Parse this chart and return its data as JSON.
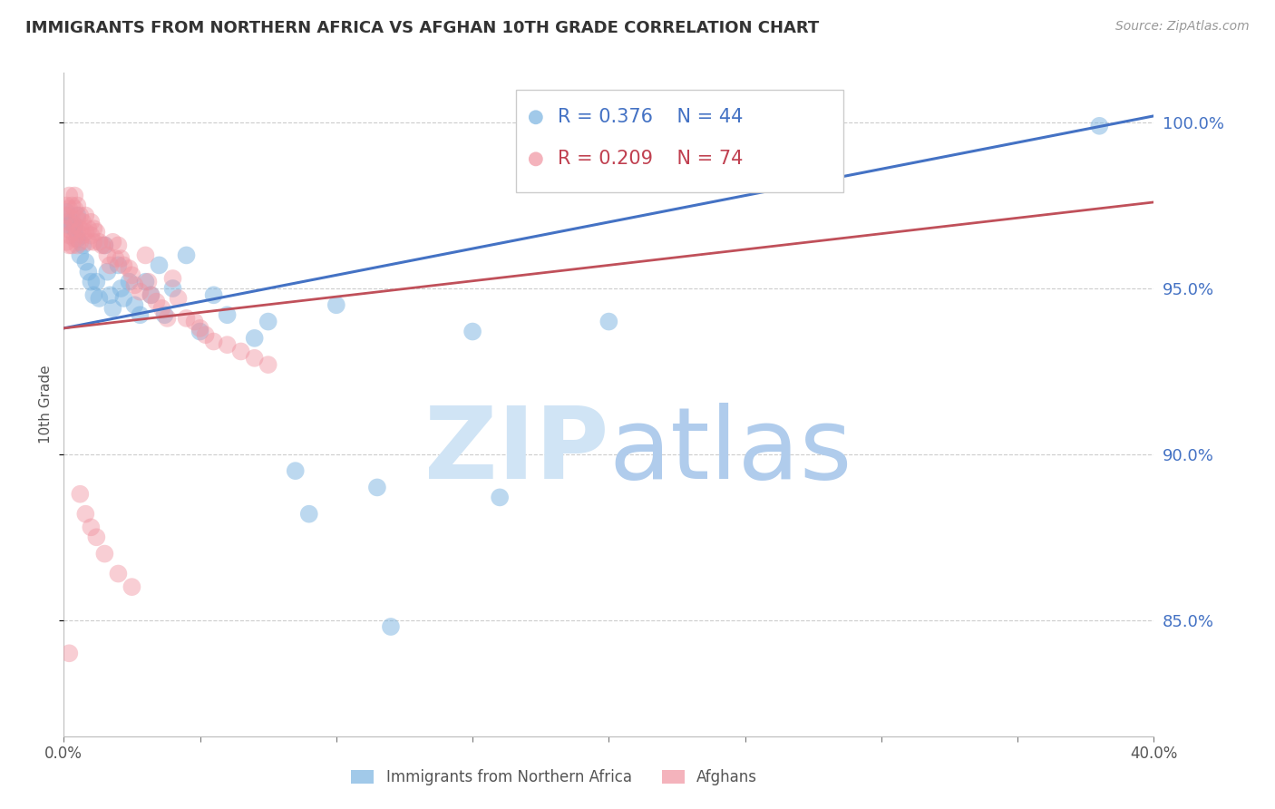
{
  "title": "IMMIGRANTS FROM NORTHERN AFRICA VS AFGHAN 10TH GRADE CORRELATION CHART",
  "source": "Source: ZipAtlas.com",
  "ylabel": "10th Grade",
  "xlim": [
    0.0,
    0.4
  ],
  "ylim": [
    0.815,
    1.015
  ],
  "yticks": [
    0.85,
    0.9,
    0.95,
    1.0
  ],
  "ytick_labels": [
    "85.0%",
    "90.0%",
    "95.0%",
    "100.0%"
  ],
  "legend_r1": "R = 0.376",
  "legend_n1": "N = 44",
  "legend_r2": "R = 0.209",
  "legend_n2": "N = 74",
  "blue_color": "#7AB3E0",
  "pink_color": "#F093A0",
  "blue_line_color": "#4472C4",
  "pink_line_color": "#C0505A",
  "blue_line": [
    [
      0.0,
      0.938
    ],
    [
      0.4,
      1.002
    ]
  ],
  "pink_line": [
    [
      0.0,
      0.938
    ],
    [
      0.4,
      0.976
    ]
  ],
  "blue_scatter": [
    [
      0.001,
      0.973
    ],
    [
      0.002,
      0.969
    ],
    [
      0.003,
      0.97
    ],
    [
      0.004,
      0.968
    ],
    [
      0.005,
      0.972
    ],
    [
      0.005,
      0.965
    ],
    [
      0.006,
      0.96
    ],
    [
      0.007,
      0.963
    ],
    [
      0.008,
      0.958
    ],
    [
      0.009,
      0.955
    ],
    [
      0.01,
      0.952
    ],
    [
      0.011,
      0.948
    ],
    [
      0.012,
      0.952
    ],
    [
      0.013,
      0.947
    ],
    [
      0.015,
      0.963
    ],
    [
      0.016,
      0.955
    ],
    [
      0.017,
      0.948
    ],
    [
      0.018,
      0.944
    ],
    [
      0.02,
      0.957
    ],
    [
      0.021,
      0.95
    ],
    [
      0.022,
      0.947
    ],
    [
      0.024,
      0.952
    ],
    [
      0.026,
      0.945
    ],
    [
      0.028,
      0.942
    ],
    [
      0.03,
      0.952
    ],
    [
      0.032,
      0.948
    ],
    [
      0.035,
      0.957
    ],
    [
      0.037,
      0.942
    ],
    [
      0.04,
      0.95
    ],
    [
      0.045,
      0.96
    ],
    [
      0.05,
      0.937
    ],
    [
      0.055,
      0.948
    ],
    [
      0.06,
      0.942
    ],
    [
      0.07,
      0.935
    ],
    [
      0.075,
      0.94
    ],
    [
      0.085,
      0.895
    ],
    [
      0.09,
      0.882
    ],
    [
      0.1,
      0.945
    ],
    [
      0.115,
      0.89
    ],
    [
      0.12,
      0.848
    ],
    [
      0.15,
      0.937
    ],
    [
      0.16,
      0.887
    ],
    [
      0.2,
      0.94
    ],
    [
      0.38,
      0.999
    ]
  ],
  "pink_scatter": [
    [
      0.001,
      0.975
    ],
    [
      0.001,
      0.972
    ],
    [
      0.001,
      0.968
    ],
    [
      0.001,
      0.964
    ],
    [
      0.002,
      0.978
    ],
    [
      0.002,
      0.974
    ],
    [
      0.002,
      0.97
    ],
    [
      0.002,
      0.966
    ],
    [
      0.002,
      0.963
    ],
    [
      0.003,
      0.975
    ],
    [
      0.003,
      0.971
    ],
    [
      0.003,
      0.967
    ],
    [
      0.003,
      0.963
    ],
    [
      0.004,
      0.978
    ],
    [
      0.004,
      0.974
    ],
    [
      0.004,
      0.969
    ],
    [
      0.004,
      0.965
    ],
    [
      0.005,
      0.975
    ],
    [
      0.005,
      0.971
    ],
    [
      0.005,
      0.967
    ],
    [
      0.005,
      0.963
    ],
    [
      0.006,
      0.972
    ],
    [
      0.006,
      0.968
    ],
    [
      0.006,
      0.964
    ],
    [
      0.007,
      0.97
    ],
    [
      0.007,
      0.966
    ],
    [
      0.008,
      0.972
    ],
    [
      0.008,
      0.967
    ],
    [
      0.009,
      0.968
    ],
    [
      0.009,
      0.964
    ],
    [
      0.01,
      0.97
    ],
    [
      0.01,
      0.966
    ],
    [
      0.011,
      0.968
    ],
    [
      0.011,
      0.964
    ],
    [
      0.012,
      0.967
    ],
    [
      0.013,
      0.964
    ],
    [
      0.014,
      0.963
    ],
    [
      0.015,
      0.963
    ],
    [
      0.016,
      0.96
    ],
    [
      0.017,
      0.957
    ],
    [
      0.018,
      0.964
    ],
    [
      0.019,
      0.959
    ],
    [
      0.02,
      0.963
    ],
    [
      0.021,
      0.959
    ],
    [
      0.022,
      0.957
    ],
    [
      0.024,
      0.956
    ],
    [
      0.025,
      0.954
    ],
    [
      0.026,
      0.951
    ],
    [
      0.028,
      0.949
    ],
    [
      0.03,
      0.96
    ],
    [
      0.031,
      0.952
    ],
    [
      0.032,
      0.948
    ],
    [
      0.034,
      0.946
    ],
    [
      0.036,
      0.944
    ],
    [
      0.038,
      0.941
    ],
    [
      0.04,
      0.953
    ],
    [
      0.042,
      0.947
    ],
    [
      0.045,
      0.941
    ],
    [
      0.048,
      0.94
    ],
    [
      0.05,
      0.938
    ],
    [
      0.052,
      0.936
    ],
    [
      0.055,
      0.934
    ],
    [
      0.06,
      0.933
    ],
    [
      0.065,
      0.931
    ],
    [
      0.07,
      0.929
    ],
    [
      0.075,
      0.927
    ],
    [
      0.006,
      0.888
    ],
    [
      0.008,
      0.882
    ],
    [
      0.01,
      0.878
    ],
    [
      0.012,
      0.875
    ],
    [
      0.015,
      0.87
    ],
    [
      0.02,
      0.864
    ],
    [
      0.025,
      0.86
    ],
    [
      0.002,
      0.84
    ]
  ],
  "figsize": [
    14.06,
    8.92
  ],
  "dpi": 100
}
